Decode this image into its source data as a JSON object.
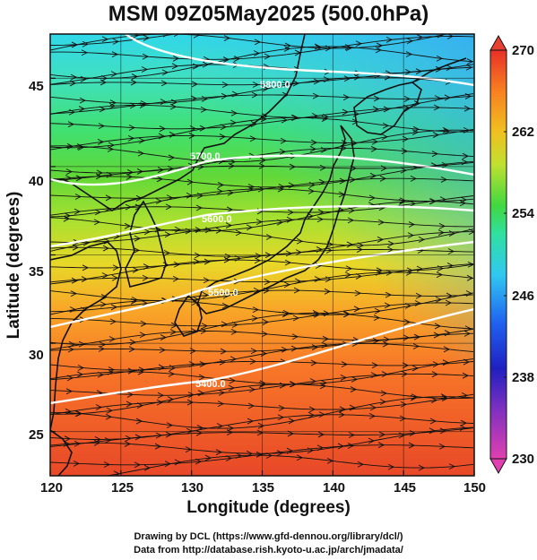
{
  "title": "MSM 09Z05May2025 (500.0hPa)",
  "x_axis": {
    "label": "Longitude (degrees)",
    "ticks": [
      "120",
      "125",
      "130",
      "135",
      "140",
      "145",
      "150"
    ],
    "range": [
      120,
      150
    ]
  },
  "y_axis": {
    "label": "Latitude  (degrees)",
    "ticks": [
      "25",
      "30",
      "35",
      "40",
      "45"
    ],
    "range": [
      22.5,
      47.5
    ]
  },
  "colorbar": {
    "ticks": [
      "270",
      "262",
      "254",
      "246",
      "238",
      "230"
    ],
    "range": [
      230,
      270
    ],
    "colors": [
      "#e0409a",
      "#b040c0",
      "#5020b0",
      "#1a2ee0",
      "#1e80ff",
      "#30d8e8",
      "#30e080",
      "#40d030",
      "#b8e030",
      "#f0d020",
      "#f89a20",
      "#f06020",
      "#e03028"
    ]
  },
  "contours": [
    {
      "label": "5400.0",
      "value": 5400
    },
    {
      "label": "5500.0",
      "value": 5500
    },
    {
      "label": "5600.0",
      "value": 5600
    },
    {
      "label": "5700.0",
      "value": 5700
    },
    {
      "label": "5800.0",
      "value": 5800
    }
  ],
  "credits": {
    "line1": "Drawing by DCL (https://www.gfd-dennou.org/library/dcl/)",
    "line2": "Data from http://database.rish.kyoto-u.ac.jp/arch/jmadata/"
  }
}
